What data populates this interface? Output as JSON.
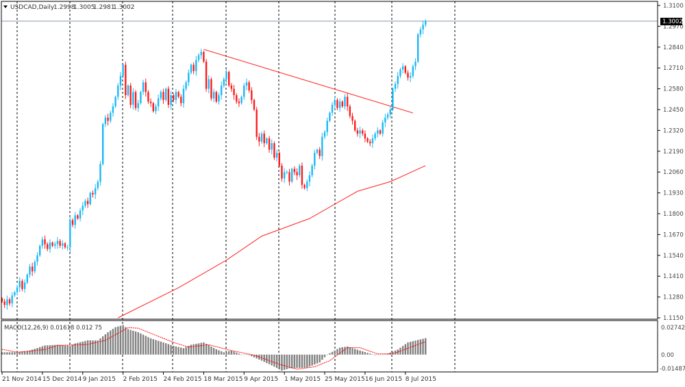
{
  "header": {
    "symbol_label": "USDCAD,Daily",
    "open": "1.2998",
    "high": "1.3005",
    "low": "1.2981",
    "close": "1.3002",
    "dropdown_icon": "triangle-down-icon"
  },
  "current_price_label": "1.3002",
  "macd_label": "MACD(12,26,9) 0.01618 0.012 75",
  "colors": {
    "bull": "#1ab8f5",
    "bear": "#ff1a1a",
    "ma_line": "#ff2020",
    "trendline": "#ff4040",
    "histogram": "#808080",
    "signal": "#ff0000",
    "price_line": "#8a96aa"
  },
  "chart_data": [
    {
      "type": "candlestick",
      "ylim": [
        1.115,
        1.31
      ],
      "y_ticks": [
        "1.3100",
        "1.2970",
        "1.2840",
        "1.2710",
        "1.2580",
        "1.2450",
        "1.2320",
        "1.2190",
        "1.2060",
        "1.1930",
        "1.1800",
        "1.1670",
        "1.1540",
        "1.1410",
        "1.1280",
        "1.1150"
      ],
      "x_tick_labels": [
        "21 Nov 2014",
        "15 Dec 2014",
        "9 Jan 2015",
        "2 Feb 2015",
        "24 Feb 2015",
        "18 Mar 2015",
        "9 Apr 2015",
        "1 May 2015",
        "25 May 2015",
        "16 Jun 2015",
        "8 Jul 2015"
      ],
      "x_tick_bars": [
        0,
        16,
        32,
        48,
        64,
        80,
        96,
        112,
        128,
        144,
        160
      ],
      "grid": "vertical dashed separators",
      "close": [
        1.1253,
        1.123,
        1.1265,
        1.124,
        1.129,
        1.131,
        1.134,
        1.138,
        1.133,
        1.137,
        1.142,
        1.147,
        1.144,
        1.15,
        1.154,
        1.16,
        1.164,
        1.161,
        1.158,
        1.162,
        1.16,
        1.161,
        1.163,
        1.16,
        1.1615,
        1.159,
        1.159,
        1.176,
        1.173,
        1.179,
        1.177,
        1.182,
        1.185,
        1.188,
        1.186,
        1.193,
        1.192,
        1.196,
        1.2,
        1.211,
        1.236,
        1.24,
        1.238,
        1.243,
        1.247,
        1.253,
        1.26,
        1.266,
        1.273,
        1.254,
        1.26,
        1.248,
        1.256,
        1.246,
        1.249,
        1.256,
        1.262,
        1.256,
        1.25,
        1.249,
        1.244,
        1.247,
        1.252,
        1.256,
        1.251,
        1.258,
        1.248,
        1.254,
        1.251,
        1.256,
        1.253,
        1.249,
        1.258,
        1.262,
        1.268,
        1.273,
        1.269,
        1.276,
        1.279,
        1.281,
        1.275,
        1.258,
        1.264,
        1.252,
        1.256,
        1.25,
        1.254,
        1.26,
        1.264,
        1.2685,
        1.26,
        1.258,
        1.254,
        1.25,
        1.249,
        1.253,
        1.26,
        1.262,
        1.257,
        1.251,
        1.245,
        1.228,
        1.225,
        1.23,
        1.224,
        1.227,
        1.22,
        1.224,
        1.215,
        1.218,
        1.21,
        1.202,
        1.206,
        1.206,
        1.2,
        1.208,
        1.206,
        1.204,
        1.21,
        1.198,
        1.196,
        1.2,
        1.204,
        1.21,
        1.218,
        1.22,
        1.216,
        1.228,
        1.231,
        1.238,
        1.243,
        1.248,
        1.251,
        1.246,
        1.25,
        1.247,
        1.253,
        1.247,
        1.241,
        1.238,
        1.232,
        1.23,
        1.232,
        1.23,
        1.227,
        1.225,
        1.224,
        1.227,
        1.23,
        1.232,
        1.23,
        1.237,
        1.24,
        1.242,
        1.245,
        1.258,
        1.261,
        1.266,
        1.27,
        1.272,
        1.268,
        1.265,
        1.266,
        1.272,
        1.275,
        1.292,
        1.295,
        1.298,
        1.3002
      ],
      "moving_average": [
        [
          46,
          1.115
        ],
        [
          70,
          1.1338
        ],
        [
          89,
          1.151
        ],
        [
          103,
          1.166
        ],
        [
          122,
          1.177
        ],
        [
          141,
          1.194
        ],
        [
          154,
          1.2
        ],
        [
          168,
          1.21
        ]
      ],
      "trendline": [
        [
          80,
          1.2826
        ],
        [
          163,
          1.2429
        ]
      ],
      "current_price": 1.3002
    },
    {
      "type": "bar",
      "title": "MACD(12,26,9)",
      "ylim": [
        -0.01487,
        0.02742
      ],
      "y_ticks": [
        "0.02742",
        "0.00",
        "-0.01487"
      ],
      "main_value": 0.01618,
      "signal_value": 0.01275,
      "histogram": [
        [
          0,
          0.0023
        ],
        [
          6,
          0.0023
        ],
        [
          11,
          0.004
        ],
        [
          17,
          0.009
        ],
        [
          22,
          0.0097
        ],
        [
          27,
          0.0086
        ],
        [
          29,
          0.011
        ],
        [
          34,
          0.014
        ],
        [
          38,
          0.014
        ],
        [
          42,
          0.022
        ],
        [
          45,
          0.027
        ],
        [
          48,
          0.029
        ],
        [
          50,
          0.025
        ],
        [
          54,
          0.022
        ],
        [
          59,
          0.016
        ],
        [
          64,
          0.012
        ],
        [
          68,
          0.0086
        ],
        [
          72,
          0.0063
        ],
        [
          75,
          0.0097
        ],
        [
          80,
          0.012
        ],
        [
          85,
          0.0052
        ],
        [
          88,
          0.0023
        ],
        [
          91,
          0.004
        ],
        [
          95,
          0
        ],
        [
          98,
          -0.0005
        ],
        [
          103,
          -0.006
        ],
        [
          107,
          -0.0106
        ],
        [
          111,
          -0.0158
        ],
        [
          114,
          -0.0135
        ],
        [
          121,
          -0.0128
        ],
        [
          126,
          -0.0077
        ],
        [
          129,
          0
        ],
        [
          134,
          0.0068
        ],
        [
          137,
          0.008
        ],
        [
          142,
          0.004
        ],
        [
          148,
          -0.0005
        ],
        [
          152,
          0
        ],
        [
          157,
          0.005
        ],
        [
          161,
          0.012
        ],
        [
          166,
          0.015
        ],
        [
          168,
          0.01618
        ]
      ],
      "signal": [
        [
          0,
          0.0052
        ],
        [
          6,
          0.0023
        ],
        [
          17,
          0.005
        ],
        [
          22,
          0.009
        ],
        [
          34,
          0.01
        ],
        [
          41,
          0.014
        ],
        [
          50,
          0.0265
        ],
        [
          54,
          0.026
        ],
        [
          68,
          0.012
        ],
        [
          74,
          0.0074
        ],
        [
          82,
          0.0097
        ],
        [
          91,
          0.004
        ],
        [
          100,
          -0.0005
        ],
        [
          110,
          -0.0095
        ],
        [
          117,
          -0.0144
        ],
        [
          124,
          -0.012
        ],
        [
          130,
          -0.006
        ],
        [
          137,
          0.0068
        ],
        [
          142,
          0.0068
        ],
        [
          149,
          0.0007
        ],
        [
          155,
          0.0007
        ],
        [
          168,
          0.01275
        ]
      ]
    }
  ]
}
